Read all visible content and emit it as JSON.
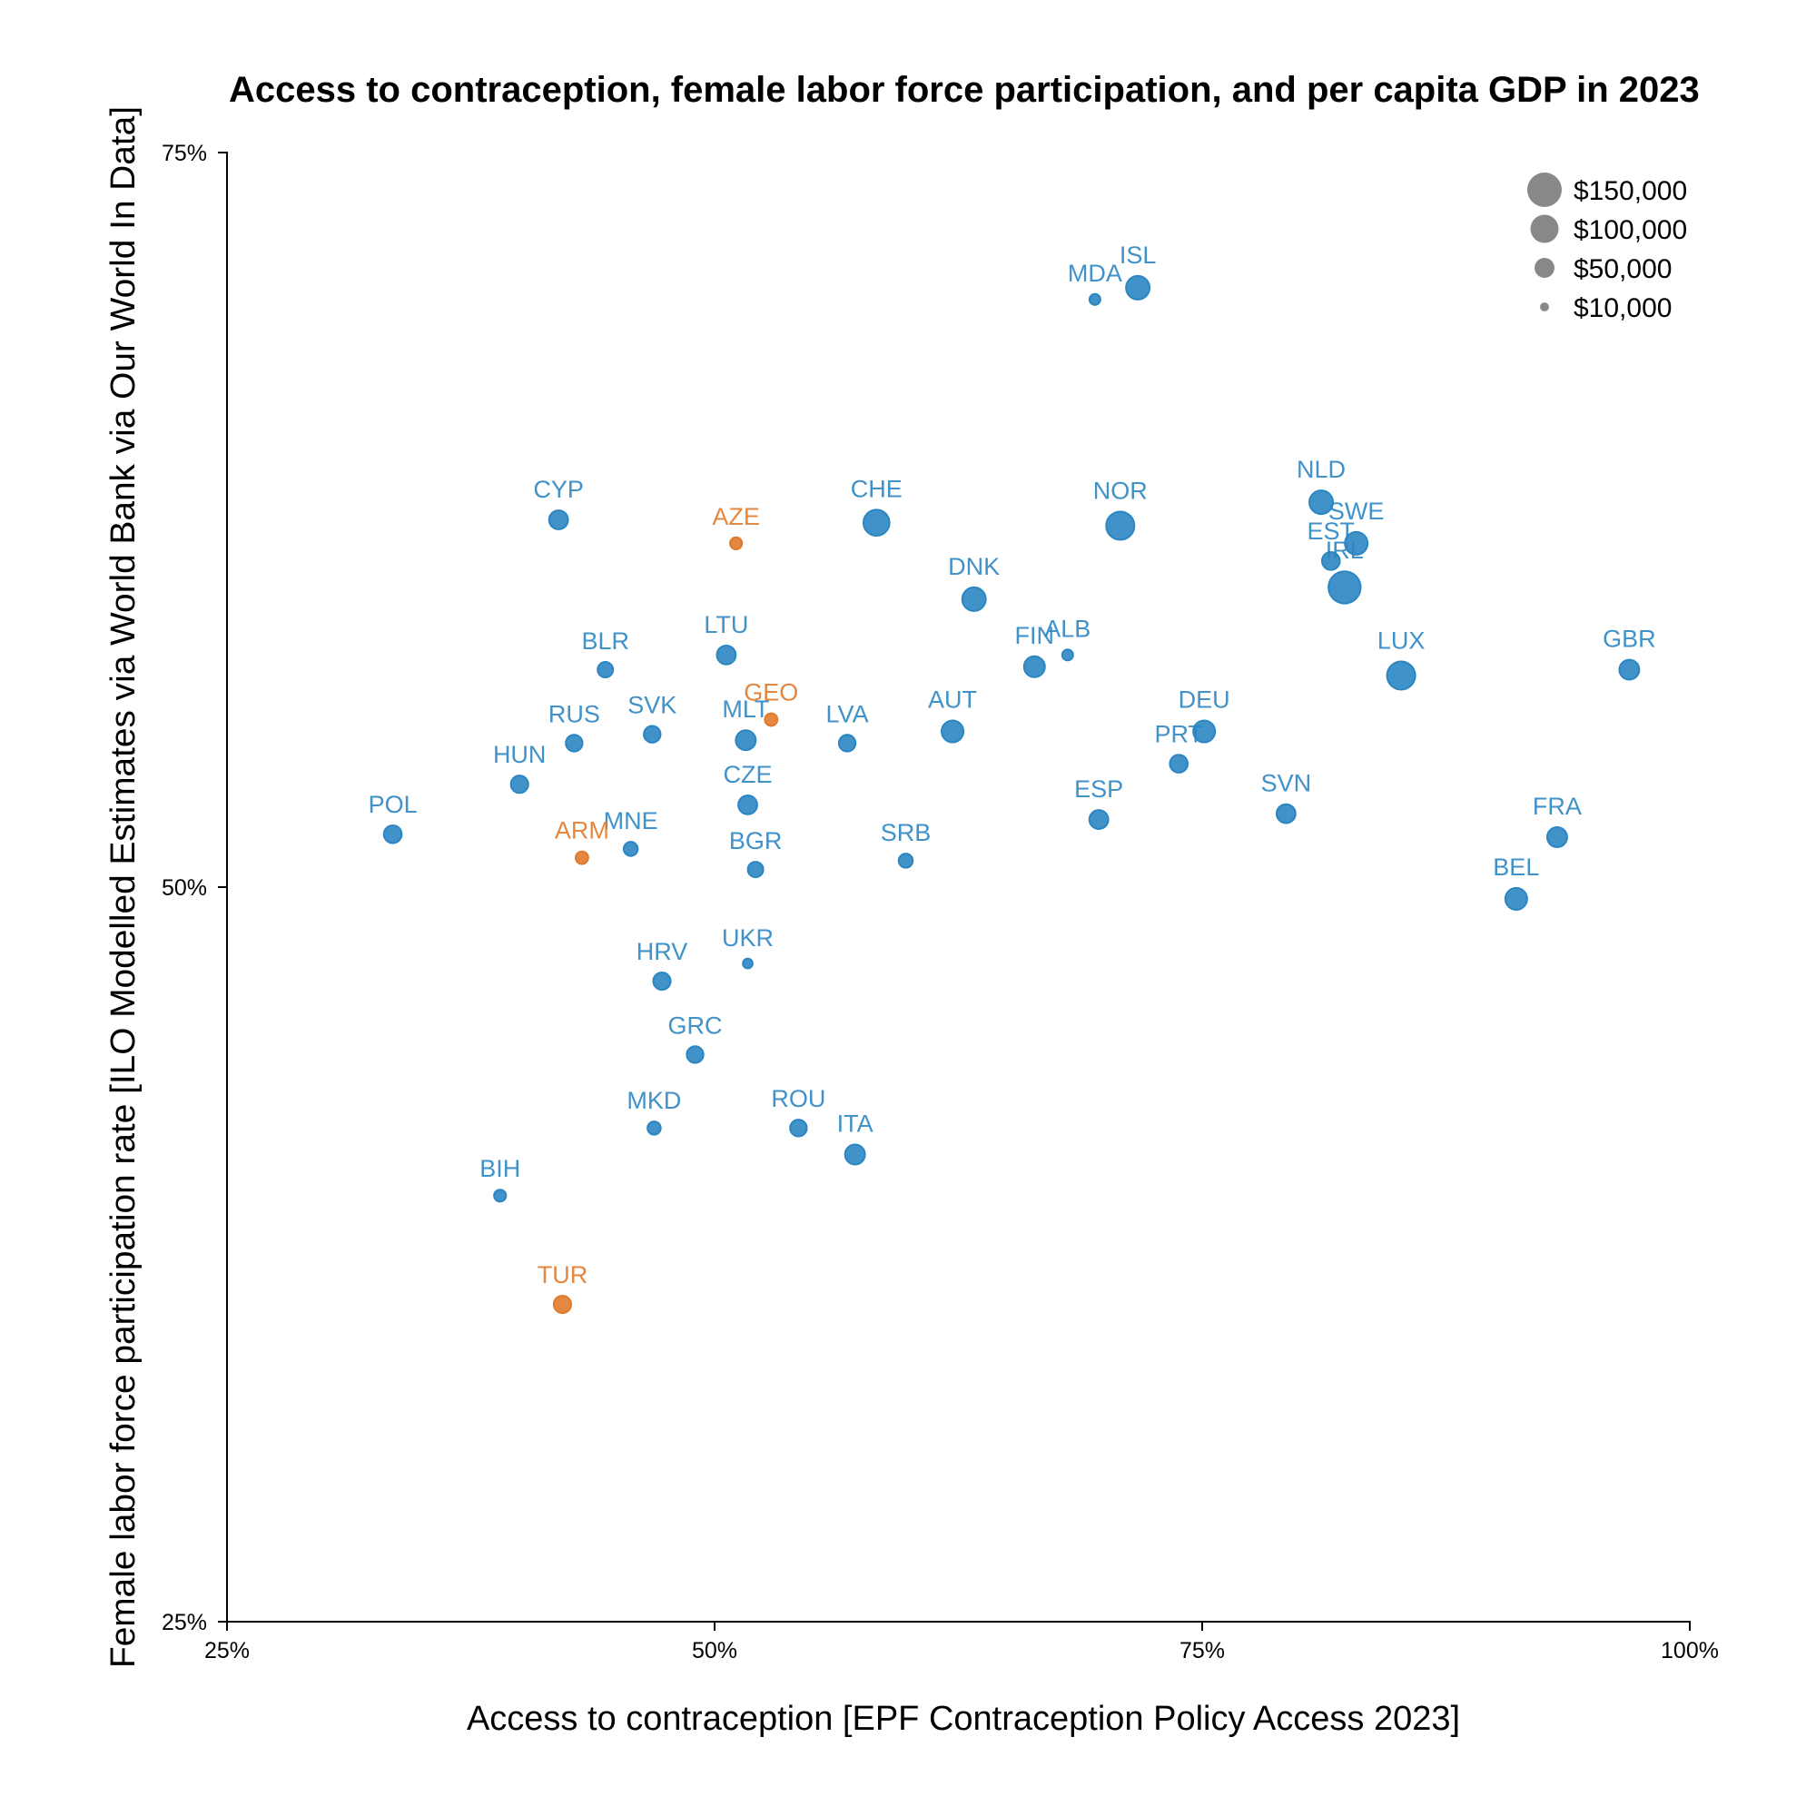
{
  "chart_data": {
    "type": "scatter",
    "title": "Access to contraception, female labor force participation, and per capita GDP in 2023",
    "xlabel": "Access to contraception [EPF Contraception Policy Access 2023]",
    "ylabel": "Female labor force participation rate [ILO Modelled Estimates via World Bank via Our World In Data]",
    "xlim": [
      25,
      100
    ],
    "ylim": [
      25,
      75
    ],
    "x_ticks": [
      25,
      50,
      75,
      100
    ],
    "x_tick_labels": [
      "25%",
      "50%",
      "75%",
      "100%"
    ],
    "y_ticks": [
      25,
      50,
      75
    ],
    "y_tick_labels": [
      "25%",
      "50%",
      "75%"
    ],
    "grid": false,
    "size_legend": {
      "placement": "top-right",
      "entries": [
        {
          "label": "$150,000",
          "value": 150000
        },
        {
          "label": "$100,000",
          "value": 100000
        },
        {
          "label": "$50,000",
          "value": 50000
        },
        {
          "label": "$10,000",
          "value": 10000
        }
      ],
      "color": "#888888"
    },
    "colors": {
      "default": "#2b86c2",
      "highlight": "#e07a2c"
    },
    "points": [
      {
        "label": "MDA",
        "x": 69.5,
        "y": 70.0,
        "gdp": 15000,
        "group": "default"
      },
      {
        "label": "ISL",
        "x": 71.7,
        "y": 70.4,
        "gdp": 70000,
        "group": "default"
      },
      {
        "label": "CYP",
        "x": 42.0,
        "y": 62.5,
        "gdp": 45000,
        "group": "default"
      },
      {
        "label": "AZE",
        "x": 51.1,
        "y": 61.7,
        "gdp": 18000,
        "group": "highlight"
      },
      {
        "label": "CHE",
        "x": 58.3,
        "y": 62.4,
        "gdp": 85000,
        "group": "default"
      },
      {
        "label": "NOR",
        "x": 70.8,
        "y": 62.3,
        "gdp": 100000,
        "group": "default"
      },
      {
        "label": "NLD",
        "x": 81.1,
        "y": 63.1,
        "gdp": 70000,
        "group": "default"
      },
      {
        "label": "SWE",
        "x": 82.9,
        "y": 61.7,
        "gdp": 65000,
        "group": "default"
      },
      {
        "label": "EST",
        "x": 81.6,
        "y": 61.1,
        "gdp": 40000,
        "group": "default"
      },
      {
        "label": "IRL",
        "x": 82.3,
        "y": 60.2,
        "gdp": 130000,
        "group": "default"
      },
      {
        "label": "DNK",
        "x": 63.3,
        "y": 59.8,
        "gdp": 70000,
        "group": "default"
      },
      {
        "label": "LTU",
        "x": 50.6,
        "y": 57.9,
        "gdp": 45000,
        "group": "default"
      },
      {
        "label": "ALB",
        "x": 68.1,
        "y": 57.9,
        "gdp": 15000,
        "group": "default"
      },
      {
        "label": "BLR",
        "x": 44.4,
        "y": 57.4,
        "gdp": 30000,
        "group": "default"
      },
      {
        "label": "FIN",
        "x": 66.4,
        "y": 57.5,
        "gdp": 55000,
        "group": "default"
      },
      {
        "label": "LUX",
        "x": 85.2,
        "y": 57.2,
        "gdp": 100000,
        "group": "default"
      },
      {
        "label": "GBR",
        "x": 96.9,
        "y": 57.4,
        "gdp": 50000,
        "group": "default"
      },
      {
        "label": "GEO",
        "x": 52.9,
        "y": 55.7,
        "gdp": 20000,
        "group": "highlight"
      },
      {
        "label": "SVK",
        "x": 46.8,
        "y": 55.2,
        "gdp": 35000,
        "group": "default"
      },
      {
        "label": "MLT",
        "x": 51.6,
        "y": 55.0,
        "gdp": 50000,
        "group": "default"
      },
      {
        "label": "LVA",
        "x": 56.8,
        "y": 54.9,
        "gdp": 35000,
        "group": "default"
      },
      {
        "label": "AUT",
        "x": 62.2,
        "y": 55.3,
        "gdp": 60000,
        "group": "default"
      },
      {
        "label": "DEU",
        "x": 75.1,
        "y": 55.3,
        "gdp": 60000,
        "group": "default"
      },
      {
        "label": "RUS",
        "x": 42.8,
        "y": 54.9,
        "gdp": 35000,
        "group": "default"
      },
      {
        "label": "PRT",
        "x": 73.8,
        "y": 54.2,
        "gdp": 40000,
        "group": "default"
      },
      {
        "label": "HUN",
        "x": 40.0,
        "y": 53.5,
        "gdp": 38000,
        "group": "default"
      },
      {
        "label": "CZE",
        "x": 51.7,
        "y": 52.8,
        "gdp": 45000,
        "group": "default"
      },
      {
        "label": "SVN",
        "x": 79.3,
        "y": 52.5,
        "gdp": 45000,
        "group": "default"
      },
      {
        "label": "ESP",
        "x": 69.7,
        "y": 52.3,
        "gdp": 45000,
        "group": "default"
      },
      {
        "label": "POL",
        "x": 33.5,
        "y": 51.8,
        "gdp": 40000,
        "group": "default"
      },
      {
        "label": "FRA",
        "x": 93.2,
        "y": 51.7,
        "gdp": 50000,
        "group": "default"
      },
      {
        "label": "MNE",
        "x": 45.7,
        "y": 51.3,
        "gdp": 25000,
        "group": "default"
      },
      {
        "label": "ARM",
        "x": 43.2,
        "y": 51.0,
        "gdp": 20000,
        "group": "highlight"
      },
      {
        "label": "SRB",
        "x": 59.8,
        "y": 50.9,
        "gdp": 25000,
        "group": "default"
      },
      {
        "label": "BGR",
        "x": 52.1,
        "y": 50.6,
        "gdp": 30000,
        "group": "default"
      },
      {
        "label": "BEL",
        "x": 91.1,
        "y": 49.6,
        "gdp": 60000,
        "group": "default"
      },
      {
        "label": "UKR",
        "x": 51.7,
        "y": 47.4,
        "gdp": 12000,
        "group": "default"
      },
      {
        "label": "HRV",
        "x": 47.3,
        "y": 46.8,
        "gdp": 38000,
        "group": "default"
      },
      {
        "label": "GRC",
        "x": 49.0,
        "y": 44.3,
        "gdp": 35000,
        "group": "default"
      },
      {
        "label": "MKD",
        "x": 46.9,
        "y": 41.8,
        "gdp": 22000,
        "group": "default"
      },
      {
        "label": "ROU",
        "x": 54.3,
        "y": 41.8,
        "gdp": 35000,
        "group": "default"
      },
      {
        "label": "ITA",
        "x": 57.2,
        "y": 40.9,
        "gdp": 50000,
        "group": "default"
      },
      {
        "label": "BIH",
        "x": 39.0,
        "y": 39.5,
        "gdp": 18000,
        "group": "default"
      },
      {
        "label": "TUR",
        "x": 42.2,
        "y": 35.8,
        "gdp": 38000,
        "group": "highlight"
      }
    ]
  }
}
